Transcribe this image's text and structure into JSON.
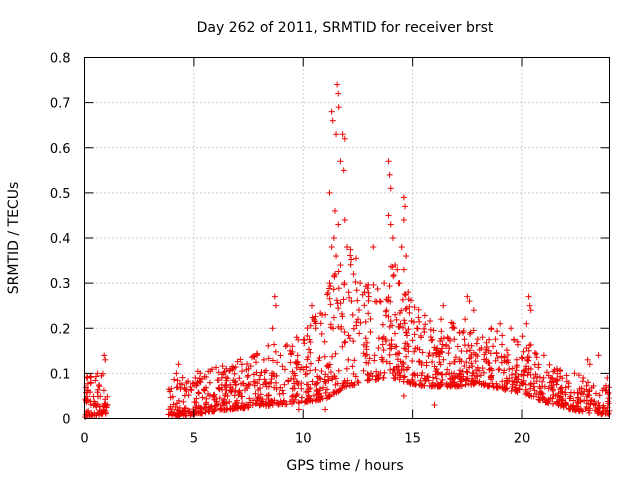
{
  "chart_data": {
    "type": "scatter",
    "title": "Day 262 of 2011, SRMTID for receiver brst",
    "xlabel": "GPS time / hours",
    "ylabel": "SRMTID / TECUs",
    "xlim": [
      0,
      24
    ],
    "ylim": [
      0,
      0.8
    ],
    "xticks": [
      0,
      5,
      10,
      15,
      20
    ],
    "xtick_labels": [
      "0",
      "5",
      "10",
      "15",
      "20"
    ],
    "yticks": [
      0,
      0.1,
      0.2,
      0.3,
      0.4,
      0.5,
      0.6,
      0.7,
      0.8
    ],
    "ytick_labels": [
      "0",
      "0.1",
      "0.2",
      "0.3",
      "0.4",
      "0.5",
      "0.6",
      "0.7",
      "0.8"
    ],
    "grid": true,
    "marker": "plus",
    "color": "#ee0000",
    "series": [
      {
        "name": "SRMTID",
        "envelope": [
          {
            "x": 0.0,
            "base": 0.03,
            "spread": 0.06
          },
          {
            "x": 0.5,
            "base": 0.04,
            "spread": 0.06
          },
          {
            "x": 1.0,
            "base": 0.05,
            "spread": 0.08
          },
          {
            "x": 3.8,
            "base": 0.03,
            "spread": 0.05
          },
          {
            "x": 5.0,
            "base": 0.04,
            "spread": 0.06
          },
          {
            "x": 6.0,
            "base": 0.05,
            "spread": 0.06
          },
          {
            "x": 7.0,
            "base": 0.06,
            "spread": 0.07
          },
          {
            "x": 8.0,
            "base": 0.07,
            "spread": 0.08
          },
          {
            "x": 9.0,
            "base": 0.08,
            "spread": 0.09
          },
          {
            "x": 10.0,
            "base": 0.09,
            "spread": 0.1
          },
          {
            "x": 11.0,
            "base": 0.12,
            "spread": 0.14
          },
          {
            "x": 12.0,
            "base": 0.18,
            "spread": 0.2
          },
          {
            "x": 13.0,
            "base": 0.16,
            "spread": 0.14
          },
          {
            "x": 14.0,
            "base": 0.18,
            "spread": 0.16
          },
          {
            "x": 15.0,
            "base": 0.14,
            "spread": 0.12
          },
          {
            "x": 16.0,
            "base": 0.12,
            "spread": 0.09
          },
          {
            "x": 17.0,
            "base": 0.12,
            "spread": 0.09
          },
          {
            "x": 18.0,
            "base": 0.12,
            "spread": 0.08
          },
          {
            "x": 19.0,
            "base": 0.11,
            "spread": 0.08
          },
          {
            "x": 20.0,
            "base": 0.1,
            "spread": 0.08
          },
          {
            "x": 21.0,
            "base": 0.07,
            "spread": 0.06
          },
          {
            "x": 22.0,
            "base": 0.05,
            "spread": 0.05
          },
          {
            "x": 23.0,
            "base": 0.04,
            "spread": 0.05
          },
          {
            "x": 24.0,
            "base": 0.03,
            "spread": 0.04
          }
        ],
        "segments": [
          [
            0.0,
            1.05
          ],
          [
            3.8,
            24.0
          ]
        ],
        "points": [
          {
            "x": 11.3,
            "y": 0.68
          },
          {
            "x": 11.35,
            "y": 0.66
          },
          {
            "x": 11.55,
            "y": 0.74
          },
          {
            "x": 11.6,
            "y": 0.72
          },
          {
            "x": 11.62,
            "y": 0.69
          },
          {
            "x": 11.5,
            "y": 0.63
          },
          {
            "x": 11.8,
            "y": 0.63
          },
          {
            "x": 11.9,
            "y": 0.62
          },
          {
            "x": 11.7,
            "y": 0.57
          },
          {
            "x": 11.85,
            "y": 0.55
          },
          {
            "x": 11.2,
            "y": 0.5
          },
          {
            "x": 11.45,
            "y": 0.46
          },
          {
            "x": 11.6,
            "y": 0.43
          },
          {
            "x": 11.9,
            "y": 0.44
          },
          {
            "x": 11.4,
            "y": 0.4
          },
          {
            "x": 11.3,
            "y": 0.38
          },
          {
            "x": 11.5,
            "y": 0.36
          },
          {
            "x": 11.7,
            "y": 0.34
          },
          {
            "x": 12.0,
            "y": 0.38
          },
          {
            "x": 11.2,
            "y": 0.3
          },
          {
            "x": 12.3,
            "y": 0.32
          },
          {
            "x": 12.6,
            "y": 0.3
          },
          {
            "x": 12.8,
            "y": 0.28
          },
          {
            "x": 13.2,
            "y": 0.38
          },
          {
            "x": 13.9,
            "y": 0.57
          },
          {
            "x": 13.95,
            "y": 0.54
          },
          {
            "x": 14.0,
            "y": 0.51
          },
          {
            "x": 13.9,
            "y": 0.45
          },
          {
            "x": 14.0,
            "y": 0.43
          },
          {
            "x": 14.1,
            "y": 0.4
          },
          {
            "x": 14.2,
            "y": 0.34
          },
          {
            "x": 14.3,
            "y": 0.33
          },
          {
            "x": 14.6,
            "y": 0.49
          },
          {
            "x": 14.65,
            "y": 0.47
          },
          {
            "x": 14.6,
            "y": 0.44
          },
          {
            "x": 14.5,
            "y": 0.38
          },
          {
            "x": 14.7,
            "y": 0.36
          },
          {
            "x": 14.4,
            "y": 0.3
          },
          {
            "x": 14.6,
            "y": 0.33
          },
          {
            "x": 13.7,
            "y": 0.3
          },
          {
            "x": 12.2,
            "y": 0.26
          },
          {
            "x": 13.0,
            "y": 0.27
          },
          {
            "x": 13.5,
            "y": 0.26
          },
          {
            "x": 14.8,
            "y": 0.28
          },
          {
            "x": 10.4,
            "y": 0.25
          },
          {
            "x": 10.5,
            "y": 0.22
          },
          {
            "x": 11.0,
            "y": 0.23
          },
          {
            "x": 8.7,
            "y": 0.27
          },
          {
            "x": 8.75,
            "y": 0.25
          },
          {
            "x": 8.6,
            "y": 0.2
          },
          {
            "x": 9.7,
            "y": 0.18
          },
          {
            "x": 9.5,
            "y": 0.16
          },
          {
            "x": 12.5,
            "y": 0.22
          },
          {
            "x": 13.8,
            "y": 0.24
          },
          {
            "x": 14.2,
            "y": 0.23
          },
          {
            "x": 15.2,
            "y": 0.2
          },
          {
            "x": 16.4,
            "y": 0.25
          },
          {
            "x": 16.3,
            "y": 0.22
          },
          {
            "x": 17.5,
            "y": 0.27
          },
          {
            "x": 17.6,
            "y": 0.26
          },
          {
            "x": 17.4,
            "y": 0.22
          },
          {
            "x": 17.8,
            "y": 0.24
          },
          {
            "x": 17.3,
            "y": 0.19
          },
          {
            "x": 18.6,
            "y": 0.2
          },
          {
            "x": 19.0,
            "y": 0.21
          },
          {
            "x": 19.5,
            "y": 0.2
          },
          {
            "x": 20.3,
            "y": 0.27
          },
          {
            "x": 20.35,
            "y": 0.25
          },
          {
            "x": 20.4,
            "y": 0.24
          },
          {
            "x": 20.2,
            "y": 0.21
          },
          {
            "x": 18.2,
            "y": 0.18
          },
          {
            "x": 16.9,
            "y": 0.2
          },
          {
            "x": 0.6,
            "y": 0.1
          },
          {
            "x": 0.9,
            "y": 0.14
          },
          {
            "x": 0.95,
            "y": 0.13
          },
          {
            "x": 0.1,
            "y": 0.09
          },
          {
            "x": 0.3,
            "y": 0.08
          },
          {
            "x": 4.3,
            "y": 0.12
          },
          {
            "x": 4.2,
            "y": 0.1
          },
          {
            "x": 7.2,
            "y": 0.12
          },
          {
            "x": 7.5,
            "y": 0.11
          },
          {
            "x": 8.2,
            "y": 0.13
          },
          {
            "x": 9.2,
            "y": 0.16
          },
          {
            "x": 9.4,
            "y": 0.15
          },
          {
            "x": 21.0,
            "y": 0.14
          },
          {
            "x": 21.6,
            "y": 0.11
          },
          {
            "x": 22.4,
            "y": 0.1
          },
          {
            "x": 23.0,
            "y": 0.13
          },
          {
            "x": 23.1,
            "y": 0.12
          },
          {
            "x": 23.5,
            "y": 0.14
          },
          {
            "x": 23.9,
            "y": 0.09
          },
          {
            "x": 22.8,
            "y": 0.09
          },
          {
            "x": 14.6,
            "y": 0.05
          },
          {
            "x": 11.0,
            "y": 0.02
          },
          {
            "x": 9.8,
            "y": 0.02
          },
          {
            "x": 16.0,
            "y": 0.03
          }
        ]
      }
    ]
  }
}
